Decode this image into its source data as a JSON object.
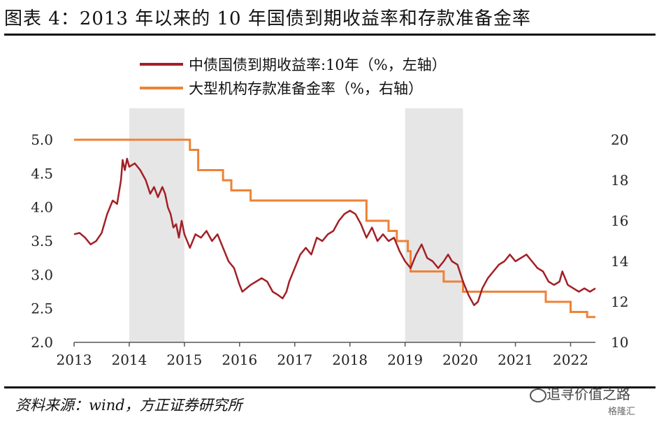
{
  "title": "图表 4：2013 年以来的 10 年国债到期收益率和存款准备金率",
  "source": "资料来源：wind，方正证券研究所",
  "watermark": "追寻价值之路",
  "watermark_sub": "格隆汇",
  "chart_data": {
    "type": "line",
    "x_ticks": [
      "2013",
      "2014",
      "2015",
      "2016",
      "2017",
      "2018",
      "2019",
      "2020",
      "2021",
      "2022"
    ],
    "y_left_ticks": [
      "2.0",
      "2.5",
      "3.0",
      "3.5",
      "4.0",
      "4.5",
      "5.0"
    ],
    "y_right_ticks": [
      "10",
      "12",
      "14",
      "16",
      "18",
      "20"
    ],
    "ylim_left": [
      2.0,
      5.0
    ],
    "ylim_right": [
      10,
      20
    ],
    "xlim": [
      2013.0,
      2022.45
    ],
    "shaded_periods": [
      [
        2014.0,
        2015.0
      ],
      [
        2019.0,
        2020.05
      ]
    ],
    "legend_position": "top",
    "colors": {
      "bond": "#A31F26",
      "rrr": "#EE8236",
      "shade": "#E6E6E6",
      "axis": "#555555"
    },
    "series": [
      {
        "name": "中债国债到期收益率:10年（%，左轴）",
        "axis": "left",
        "points": [
          [
            2013.0,
            3.6
          ],
          [
            2013.1,
            3.62
          ],
          [
            2013.2,
            3.55
          ],
          [
            2013.3,
            3.45
          ],
          [
            2013.4,
            3.5
          ],
          [
            2013.5,
            3.62
          ],
          [
            2013.6,
            3.9
          ],
          [
            2013.7,
            4.1
          ],
          [
            2013.78,
            4.05
          ],
          [
            2013.85,
            4.4
          ],
          [
            2013.88,
            4.7
          ],
          [
            2013.92,
            4.55
          ],
          [
            2013.96,
            4.72
          ],
          [
            2014.0,
            4.6
          ],
          [
            2014.1,
            4.65
          ],
          [
            2014.2,
            4.55
          ],
          [
            2014.3,
            4.4
          ],
          [
            2014.38,
            4.2
          ],
          [
            2014.45,
            4.3
          ],
          [
            2014.52,
            4.15
          ],
          [
            2014.6,
            4.3
          ],
          [
            2014.65,
            4.2
          ],
          [
            2014.7,
            4.0
          ],
          [
            2014.75,
            3.9
          ],
          [
            2014.8,
            3.7
          ],
          [
            2014.85,
            3.75
          ],
          [
            2014.9,
            3.55
          ],
          [
            2014.95,
            3.8
          ],
          [
            2015.0,
            3.6
          ],
          [
            2015.1,
            3.4
          ],
          [
            2015.2,
            3.6
          ],
          [
            2015.3,
            3.55
          ],
          [
            2015.4,
            3.65
          ],
          [
            2015.5,
            3.5
          ],
          [
            2015.6,
            3.6
          ],
          [
            2015.7,
            3.4
          ],
          [
            2015.8,
            3.2
          ],
          [
            2015.9,
            3.1
          ],
          [
            2016.0,
            2.85
          ],
          [
            2016.05,
            2.75
          ],
          [
            2016.2,
            2.85
          ],
          [
            2016.3,
            2.9
          ],
          [
            2016.4,
            2.95
          ],
          [
            2016.5,
            2.9
          ],
          [
            2016.6,
            2.75
          ],
          [
            2016.7,
            2.7
          ],
          [
            2016.78,
            2.65
          ],
          [
            2016.85,
            2.75
          ],
          [
            2016.9,
            2.9
          ],
          [
            2017.0,
            3.1
          ],
          [
            2017.1,
            3.3
          ],
          [
            2017.2,
            3.4
          ],
          [
            2017.3,
            3.3
          ],
          [
            2017.4,
            3.55
          ],
          [
            2017.5,
            3.5
          ],
          [
            2017.6,
            3.6
          ],
          [
            2017.7,
            3.65
          ],
          [
            2017.8,
            3.8
          ],
          [
            2017.9,
            3.9
          ],
          [
            2018.0,
            3.95
          ],
          [
            2018.1,
            3.9
          ],
          [
            2018.2,
            3.75
          ],
          [
            2018.3,
            3.55
          ],
          [
            2018.4,
            3.7
          ],
          [
            2018.5,
            3.5
          ],
          [
            2018.6,
            3.6
          ],
          [
            2018.7,
            3.5
          ],
          [
            2018.8,
            3.55
          ],
          [
            2018.9,
            3.35
          ],
          [
            2019.0,
            3.2
          ],
          [
            2019.1,
            3.1
          ],
          [
            2019.2,
            3.3
          ],
          [
            2019.3,
            3.45
          ],
          [
            2019.4,
            3.25
          ],
          [
            2019.5,
            3.2
          ],
          [
            2019.6,
            3.1
          ],
          [
            2019.7,
            3.2
          ],
          [
            2019.78,
            3.3
          ],
          [
            2019.85,
            3.2
          ],
          [
            2019.95,
            3.15
          ],
          [
            2020.05,
            2.9
          ],
          [
            2020.15,
            2.7
          ],
          [
            2020.25,
            2.55
          ],
          [
            2020.32,
            2.6
          ],
          [
            2020.4,
            2.8
          ],
          [
            2020.5,
            2.95
          ],
          [
            2020.6,
            3.05
          ],
          [
            2020.7,
            3.15
          ],
          [
            2020.8,
            3.2
          ],
          [
            2020.9,
            3.3
          ],
          [
            2021.0,
            3.2
          ],
          [
            2021.1,
            3.25
          ],
          [
            2021.2,
            3.3
          ],
          [
            2021.3,
            3.2
          ],
          [
            2021.4,
            3.1
          ],
          [
            2021.5,
            3.05
          ],
          [
            2021.6,
            2.9
          ],
          [
            2021.7,
            2.85
          ],
          [
            2021.8,
            2.9
          ],
          [
            2021.85,
            3.05
          ],
          [
            2021.95,
            2.85
          ],
          [
            2022.05,
            2.8
          ],
          [
            2022.15,
            2.75
          ],
          [
            2022.25,
            2.8
          ],
          [
            2022.35,
            2.75
          ],
          [
            2022.45,
            2.8
          ]
        ]
      },
      {
        "name": "大型机构存款准备金率（%，右轴）",
        "axis": "right",
        "step": true,
        "points": [
          [
            2013.0,
            20.0
          ],
          [
            2015.1,
            19.5
          ],
          [
            2015.25,
            18.5
          ],
          [
            2015.7,
            18.0
          ],
          [
            2015.85,
            17.5
          ],
          [
            2016.2,
            17.0
          ],
          [
            2018.3,
            16.0
          ],
          [
            2018.7,
            15.5
          ],
          [
            2018.85,
            15.0
          ],
          [
            2019.05,
            14.5
          ],
          [
            2019.1,
            13.5
          ],
          [
            2019.7,
            13.0
          ],
          [
            2020.05,
            12.5
          ],
          [
            2021.55,
            12.0
          ],
          [
            2022.0,
            11.5
          ],
          [
            2022.3,
            11.25
          ],
          [
            2022.45,
            11.25
          ]
        ]
      }
    ]
  }
}
